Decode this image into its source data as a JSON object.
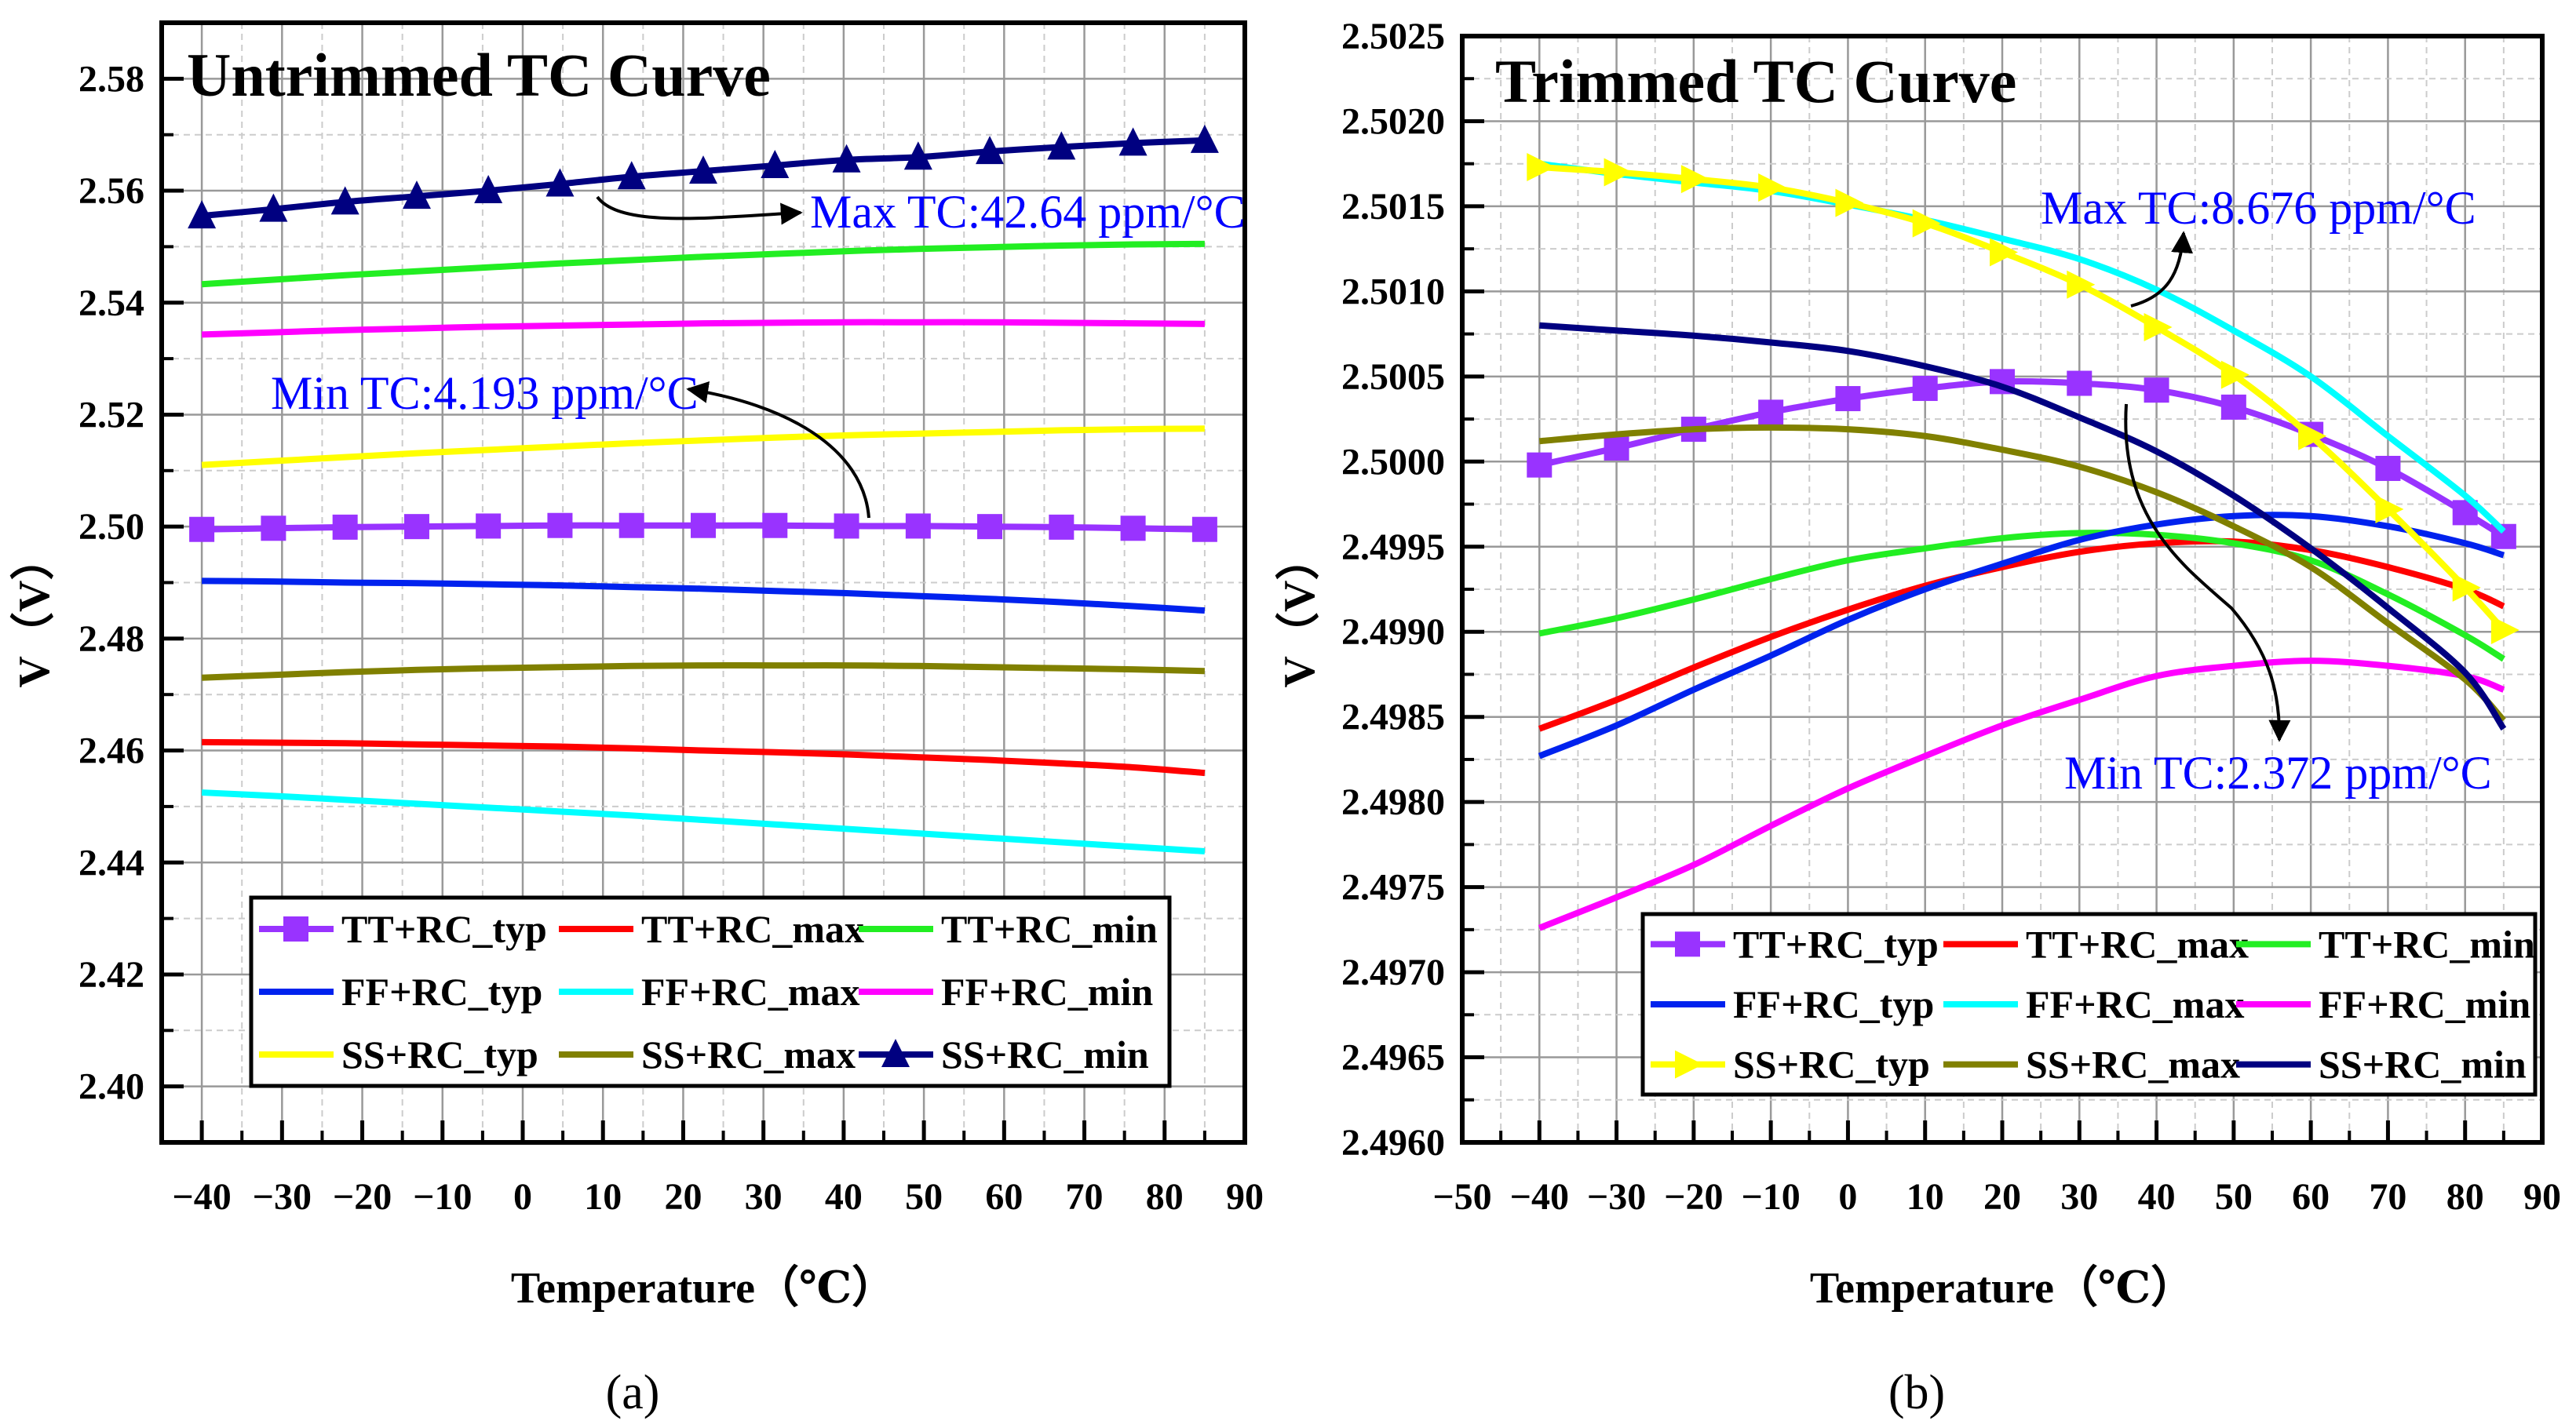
{
  "chart_data": [
    {
      "type": "line",
      "title": "Untrimmed TC Curve",
      "xlabel": "Temperature（℃）",
      "ylabel": "V（V）",
      "panel_label": "(a)",
      "xlim": [
        -45,
        90
      ],
      "ylim": [
        2.39,
        2.59
      ],
      "xticks": [
        -40,
        -30,
        -20,
        -10,
        0,
        10,
        20,
        30,
        40,
        50,
        60,
        70,
        80,
        90
      ],
      "yticks": [
        "2.40",
        "2.42",
        "2.44",
        "2.46",
        "2.48",
        "2.50",
        "2.52",
        "2.54",
        "2.56",
        "2.58"
      ],
      "grid": true,
      "legend_placement": "bottom",
      "x": [
        -40,
        -31.07,
        -22.14,
        -13.21,
        -4.29,
        4.64,
        13.57,
        22.5,
        31.43,
        40.36,
        49.29,
        58.21,
        67.14,
        76.07,
        85
      ],
      "series": [
        {
          "name": "TT+RC_typ",
          "color": "#9933FF",
          "marker": "square",
          "values": [
            2.4995,
            2.4997,
            2.4999,
            2.5,
            2.5001,
            2.5002,
            2.5002,
            2.5002,
            2.5002,
            2.5001,
            2.5001,
            2.5,
            2.4999,
            2.4997,
            2.4995
          ]
        },
        {
          "name": "TT+RC_max",
          "color": "#FF0000",
          "marker": "none",
          "values": [
            2.4615,
            2.4614,
            2.4613,
            2.4611,
            2.4609,
            2.4607,
            2.4604,
            2.46,
            2.4597,
            2.4593,
            2.4588,
            2.4583,
            2.4577,
            2.457,
            2.456
          ]
        },
        {
          "name": "TT+RC_min",
          "color": "#22EE22",
          "marker": "none",
          "values": [
            2.5433,
            2.5441,
            2.5449,
            2.5456,
            2.5463,
            2.547,
            2.5476,
            2.5482,
            2.5487,
            2.5492,
            2.5496,
            2.5499,
            2.5502,
            2.5504,
            2.5505
          ]
        },
        {
          "name": "FF+RC_typ",
          "color": "#0022EE",
          "marker": "none",
          "values": [
            2.4903,
            2.4902,
            2.49,
            2.4899,
            2.4897,
            2.4895,
            2.4892,
            2.4889,
            2.4885,
            2.4881,
            2.4876,
            2.4871,
            2.4865,
            2.4858,
            2.485
          ]
        },
        {
          "name": "FF+RC_max",
          "color": "#00FFFF",
          "marker": "none",
          "values": [
            2.4525,
            2.4519,
            2.4512,
            2.4505,
            2.4498,
            2.4491,
            2.4484,
            2.4476,
            2.4468,
            2.446,
            2.4452,
            2.4444,
            2.4436,
            2.4428,
            2.442
          ]
        },
        {
          "name": "FF+RC_min",
          "color": "#FF00FF",
          "marker": "none",
          "values": [
            2.5343,
            2.5347,
            2.5351,
            2.5354,
            2.5357,
            2.5359,
            2.5361,
            2.5363,
            2.5364,
            2.5365,
            2.5365,
            2.5365,
            2.5364,
            2.5363,
            2.5362
          ]
        },
        {
          "name": "SS+RC_typ",
          "color": "#FFFF00",
          "marker": "none",
          "values": [
            2.511,
            2.5117,
            2.5124,
            2.5131,
            2.5137,
            2.5143,
            2.5149,
            2.5154,
            2.5159,
            2.5163,
            2.5166,
            2.5169,
            2.5172,
            2.5174,
            2.5175
          ]
        },
        {
          "name": "SS+RC_max",
          "color": "#808000",
          "marker": "none",
          "values": [
            2.473,
            2.4735,
            2.474,
            2.4744,
            2.4747,
            2.4749,
            2.4751,
            2.4752,
            2.4752,
            2.4752,
            2.4751,
            2.4749,
            2.4747,
            2.4745,
            2.4742
          ]
        },
        {
          "name": "SS+RC_min",
          "color": "#000080",
          "marker": "triangle-up",
          "values": [
            2.5555,
            2.5567,
            2.558,
            2.559,
            2.56,
            2.5612,
            2.5625,
            2.5635,
            2.5645,
            2.5655,
            2.566,
            2.567,
            2.5678,
            2.5685,
            2.569
          ]
        }
      ],
      "annotations": [
        {
          "text": "Max TC:42.64 ppm/°C",
          "series": "SS+RC_min"
        },
        {
          "text": "Min TC:4.193 ppm/°C",
          "series": "TT+RC_typ"
        }
      ]
    },
    {
      "type": "line",
      "title": "Trimmed TC Curve",
      "xlabel": "Temperature（℃）",
      "ylabel": "V（V）",
      "panel_label": "(b)",
      "xlim": [
        -50,
        90
      ],
      "ylim": [
        2.496,
        2.5025
      ],
      "xticks": [
        -50,
        -40,
        -30,
        -20,
        -10,
        0,
        10,
        20,
        30,
        40,
        50,
        60,
        70,
        80,
        90
      ],
      "yticks": [
        "2.4960",
        "2.4965",
        "2.4970",
        "2.4975",
        "2.4980",
        "2.4985",
        "2.4990",
        "2.4995",
        "2.5000",
        "2.5005",
        "2.5010",
        "2.5015",
        "2.5020",
        "2.5025"
      ],
      "grid": true,
      "legend_placement": "bottom-right",
      "x": [
        -40,
        -30,
        -20,
        -10,
        0,
        10,
        20,
        30,
        40,
        50,
        60,
        70,
        80,
        85
      ],
      "series": [
        {
          "name": "TT+RC_typ",
          "color": "#9933FF",
          "marker": "square",
          "values": [
            2.49998,
            2.50008,
            2.50019,
            2.50029,
            2.50037,
            2.50043,
            2.50047,
            2.50046,
            2.50042,
            2.50032,
            2.50016,
            2.49996,
            2.4997,
            2.49956
          ]
        },
        {
          "name": "TT+RC_max",
          "color": "#FF0000",
          "marker": "none",
          "values": [
            2.49843,
            2.4986,
            2.49879,
            2.49897,
            2.49913,
            2.49927,
            2.49938,
            2.49947,
            2.49952,
            2.49953,
            2.49948,
            2.49938,
            2.49925,
            2.49915
          ]
        },
        {
          "name": "TT+RC_min",
          "color": "#22EE22",
          "marker": "none",
          "values": [
            2.49899,
            2.49908,
            2.49919,
            2.49931,
            2.49942,
            2.49949,
            2.49955,
            2.49958,
            2.49957,
            2.49952,
            2.49942,
            2.49922,
            2.49898,
            2.49884
          ]
        },
        {
          "name": "FF+RC_typ",
          "color": "#0022EE",
          "marker": "none",
          "values": [
            2.49827,
            2.49845,
            2.49866,
            2.49886,
            2.49907,
            2.49925,
            2.4994,
            2.49954,
            2.49963,
            2.49968,
            2.49968,
            2.49962,
            2.49952,
            2.49945
          ]
        },
        {
          "name": "FF+RC_max",
          "color": "#00FFFF",
          "marker": "none",
          "values": [
            2.50175,
            2.50169,
            2.50164,
            2.50159,
            2.50151,
            2.50142,
            2.50131,
            2.50119,
            2.50101,
            2.50077,
            2.5005,
            2.50015,
            2.4998,
            2.49959
          ]
        },
        {
          "name": "FF+RC_min",
          "color": "#FF00FF",
          "marker": "none",
          "values": [
            2.49726,
            2.49744,
            2.49763,
            2.49786,
            2.49808,
            2.49827,
            2.49845,
            2.4986,
            2.49874,
            2.4988,
            2.49883,
            2.4988,
            2.49874,
            2.49866
          ]
        },
        {
          "name": "SS+RC_typ",
          "color": "#FFFF00",
          "marker": "triangle-right",
          "values": [
            2.50173,
            2.5017,
            2.50166,
            2.50161,
            2.50152,
            2.5014,
            2.50123,
            2.50104,
            2.50079,
            2.50051,
            2.50015,
            2.49972,
            2.49926,
            2.49901
          ]
        },
        {
          "name": "SS+RC_max",
          "color": "#808000",
          "marker": "none",
          "values": [
            2.50012,
            2.50016,
            2.50019,
            2.5002,
            2.50019,
            2.50015,
            2.50007,
            2.49997,
            2.49982,
            2.49962,
            2.49938,
            2.49905,
            2.49872,
            2.49848
          ]
        },
        {
          "name": "SS+RC_min",
          "color": "#000080",
          "marker": "none",
          "values": [
            2.5008,
            2.50077,
            2.50074,
            2.5007,
            2.50065,
            2.50056,
            2.50044,
            2.50026,
            2.50006,
            2.4998,
            2.49949,
            2.49914,
            2.49876,
            2.49843
          ]
        }
      ],
      "annotations": [
        {
          "text": "Max TC:8.676 ppm/°C",
          "series": "SS+RC_typ"
        },
        {
          "text": "Min TC:2.372 ppm/°C",
          "series": "SS+RC_min"
        }
      ]
    }
  ]
}
